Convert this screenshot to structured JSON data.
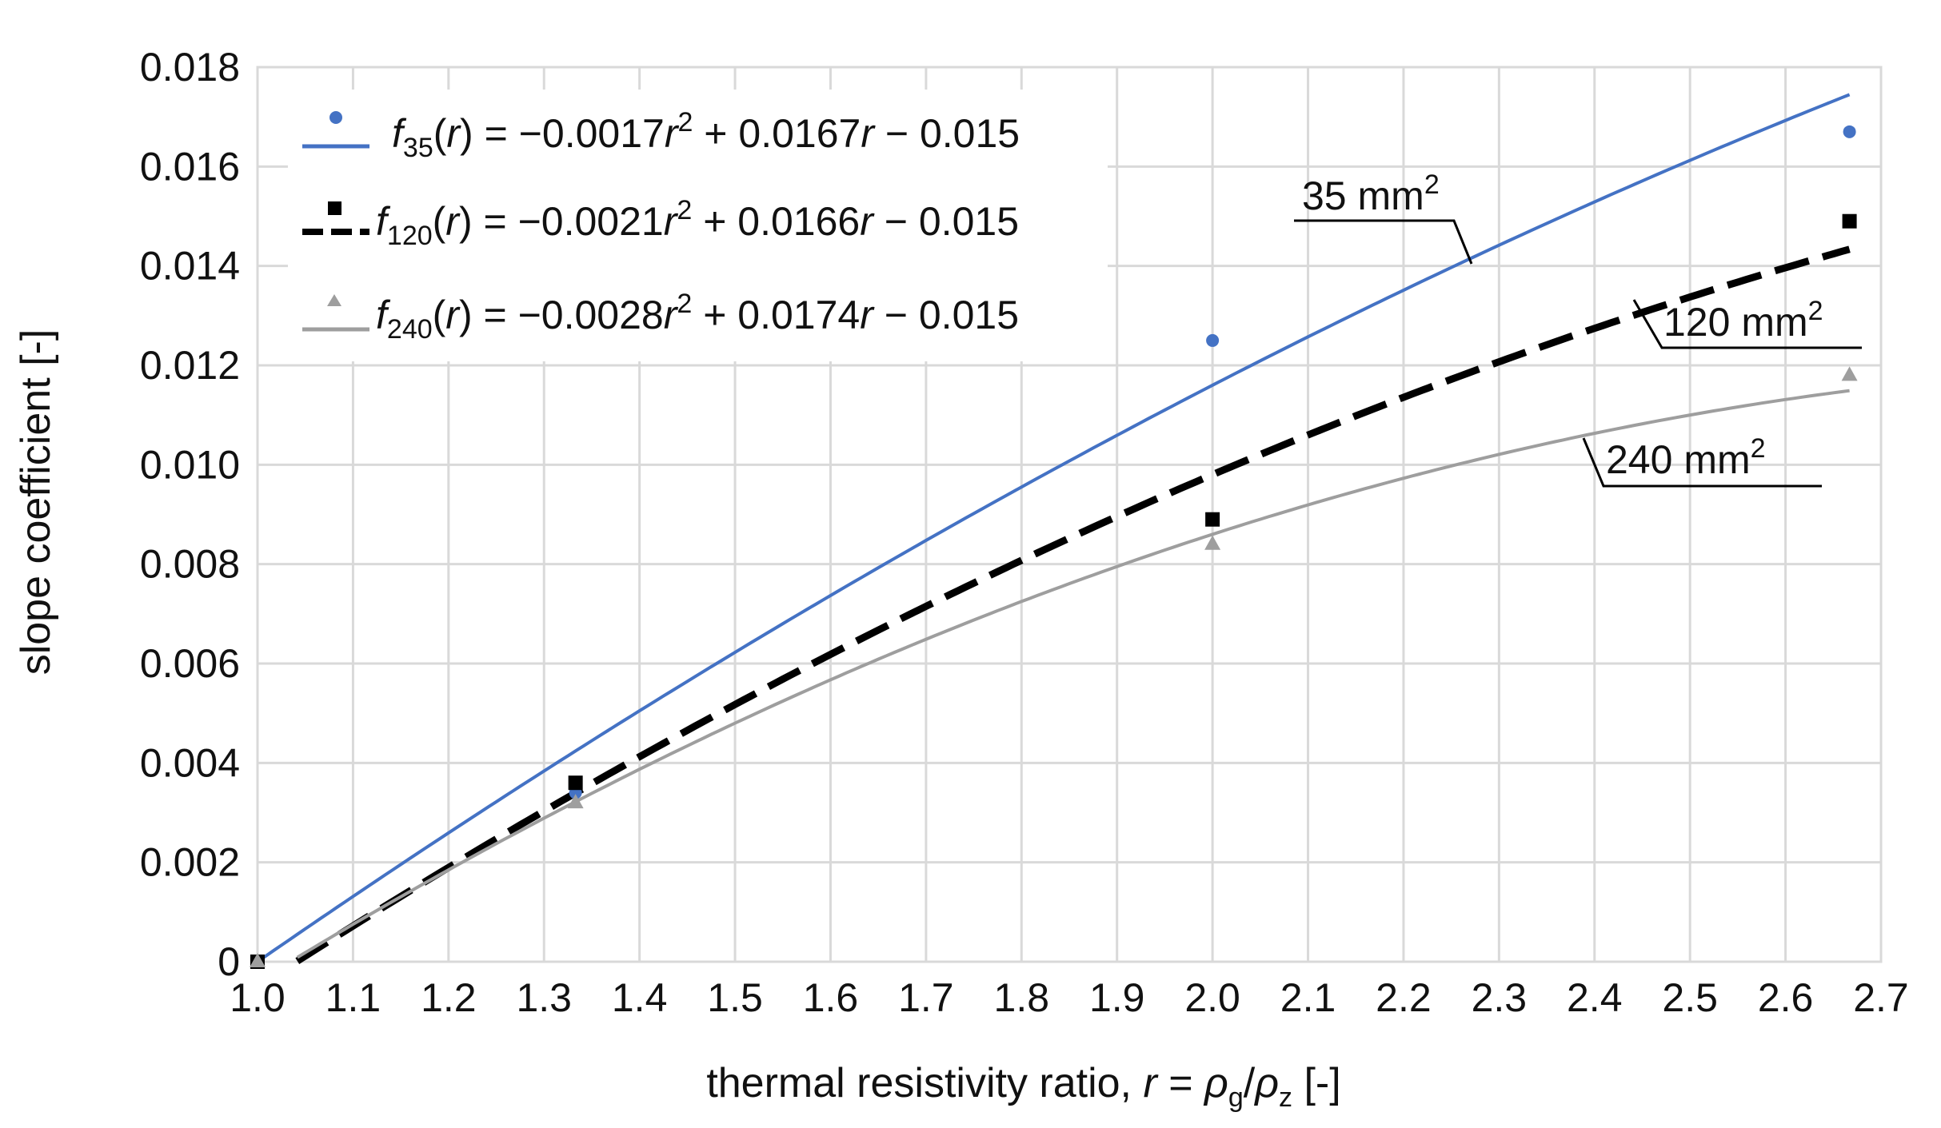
{
  "chart_data": {
    "type": "scatter",
    "title": "",
    "xlabel": {
      "main": "thermal resistivity ratio, ",
      "var": "r",
      "eq": " = ",
      "rho_g": "ρ",
      "sub_g": "g",
      "slash": "/",
      "rho_z": "ρ",
      "sub_z": "z",
      "unit": "  [-]"
    },
    "ylabel": "slope coefficient [-]",
    "xlim": [
      1.0,
      2.7
    ],
    "ylim": [
      0,
      0.018
    ],
    "x_ticks": [
      "1.0",
      "1.1",
      "1.2",
      "1.3",
      "1.4",
      "1.5",
      "1.6",
      "1.7",
      "1.8",
      "1.9",
      "2.0",
      "2.1",
      "2.2",
      "2.3",
      "2.4",
      "2.5",
      "2.6",
      "2.7"
    ],
    "y_ticks": [
      "0",
      "0.002",
      "0.004",
      "0.006",
      "0.008",
      "0.010",
      "0.012",
      "0.014",
      "0.016",
      "0.018"
    ],
    "series": [
      {
        "name": "35 mm2",
        "color": "#4472c4",
        "marker": "circle",
        "line_style": "solid",
        "legend": {
          "f": "f",
          "sub": "35",
          "r": "r",
          "rest": " = −0.0017",
          "r2": "r",
          "exp": "2",
          "tail": " + 0.0167",
          "r3": "r",
          "end": " − 0.015"
        },
        "coefficients": [
          -0.0017,
          0.0167,
          -0.015
        ],
        "x": [
          1.0,
          1.333,
          2.0,
          2.667
        ],
        "y": [
          0.0,
          0.0034,
          0.0125,
          0.0167
        ],
        "annotation": {
          "text": "35 mm",
          "sup": "2"
        }
      },
      {
        "name": "120 mm2",
        "color": "#000000",
        "marker": "square",
        "line_style": "dashed",
        "legend": {
          "f": "f",
          "sub": "120",
          "r": "r",
          "rest": " = −0.0021",
          "r2": "r",
          "exp": "2",
          "tail": " + 0.0166",
          "r3": "r",
          "end": " − 0.015"
        },
        "coefficients": [
          -0.0021,
          0.0166,
          -0.015
        ],
        "x": [
          1.0,
          1.333,
          2.0,
          2.667
        ],
        "y": [
          0.0,
          0.0036,
          0.0089,
          0.0149
        ],
        "annotation": {
          "text": "120 mm",
          "sup": "2"
        }
      },
      {
        "name": "240 mm2",
        "color": "#9e9e9e",
        "marker": "triangle",
        "line_style": "solid",
        "legend": {
          "f": "f",
          "sub": "240",
          "r": "r",
          "rest": " = −0.0028",
          "r2": "r",
          "exp": "2",
          "tail": " + 0.0174",
          "r3": "r",
          "end": " − 0.015"
        },
        "coefficients": [
          -0.0028,
          0.0174,
          -0.015
        ],
        "x": [
          1.0,
          1.333,
          2.0,
          2.667
        ],
        "y": [
          0.0,
          0.0032,
          0.0084,
          0.0118
        ],
        "annotation": {
          "text": "240 mm",
          "sup": "2"
        }
      }
    ],
    "legend_position": "top-left",
    "grid": true
  }
}
